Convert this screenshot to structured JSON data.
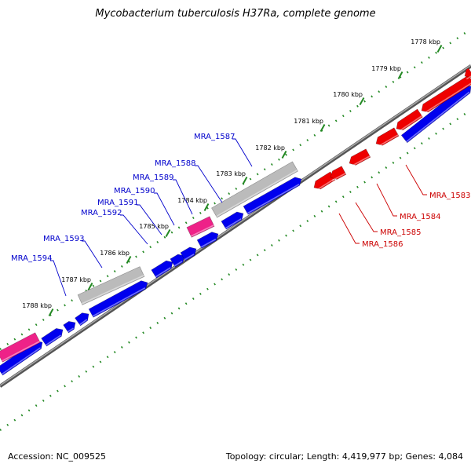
{
  "title": "Mycobacterium tuberculosis H37Ra, complete genome",
  "footer": {
    "accession": "Accession: NC_009525",
    "summary": "Topology: circular; Length: 4,419,977 bp; Genes: 4,084"
  },
  "colors": {
    "forward_gene": "#0000ee",
    "reverse_gene": "#ee0000",
    "rna_gene": "#ee2288",
    "pseudo_gene": "#bbbbbb",
    "backbone": "#808080",
    "tick": "#228822",
    "label_forward": "#0000cc",
    "label_reverse": "#cc0000"
  },
  "scale_ticks": [
    "1778 kbp",
    "1779 kbp",
    "1780 kbp",
    "1781 kbp",
    "1782 kbp",
    "1783 kbp",
    "1784 kbp",
    "1785 kbp",
    "1786 kbp",
    "1787 kbp",
    "1788 kbp"
  ],
  "forward_gene_labels": [
    "MRA_1587",
    "MRA_1588",
    "MRA_1589",
    "MRA_1590",
    "MRA_1591",
    "MRA_1592",
    "MRA_1593",
    "MRA_1594"
  ],
  "reverse_gene_labels": [
    "MRA_1583",
    "MRA_1584",
    "MRA_1585",
    "MRA_1586"
  ]
}
